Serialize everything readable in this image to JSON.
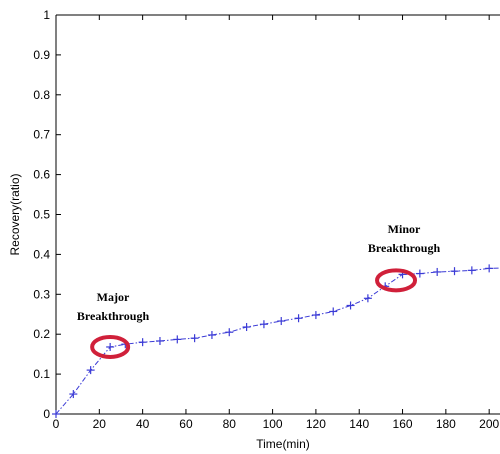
{
  "chart_data": {
    "type": "line",
    "xlabel": "Time(min)",
    "ylabel": "Recovery(ratio)",
    "xlim": [
      0,
      205
    ],
    "ylim": [
      0,
      1
    ],
    "x_ticks": [
      "0",
      "20",
      "40",
      "60",
      "80",
      "100",
      "120",
      "140",
      "160",
      "180",
      "200"
    ],
    "y_ticks": [
      "0",
      "0.1",
      "0.2",
      "0.3",
      "0.4",
      "0.5",
      "0.6",
      "0.7",
      "0.8",
      "0.9",
      "1"
    ],
    "grid": false,
    "line_color": "#3b3bd6",
    "highlight_color": "#d0203a",
    "series": [
      {
        "marker": "+",
        "line_style": "dash-dot",
        "x": [
          0,
          8,
          16,
          25,
          32,
          40,
          48,
          56,
          64,
          72,
          80,
          88,
          96,
          104,
          112,
          120,
          128,
          136,
          144,
          152,
          160,
          168,
          176,
          184,
          192,
          200,
          208
        ],
        "y": [
          0,
          0.05,
          0.11,
          0.168,
          0.175,
          0.18,
          0.183,
          0.187,
          0.19,
          0.198,
          0.205,
          0.218,
          0.225,
          0.233,
          0.24,
          0.248,
          0.257,
          0.272,
          0.29,
          0.32,
          0.35,
          0.352,
          0.356,
          0.358,
          0.36,
          0.365,
          0.366
        ]
      }
    ],
    "annotations": [
      {
        "lines": [
          "Major",
          "Breakthrough"
        ],
        "x": 25,
        "y": 0.168
      },
      {
        "lines": [
          "Minor",
          "Breakthrough"
        ],
        "x": 157,
        "y": 0.335
      }
    ]
  }
}
